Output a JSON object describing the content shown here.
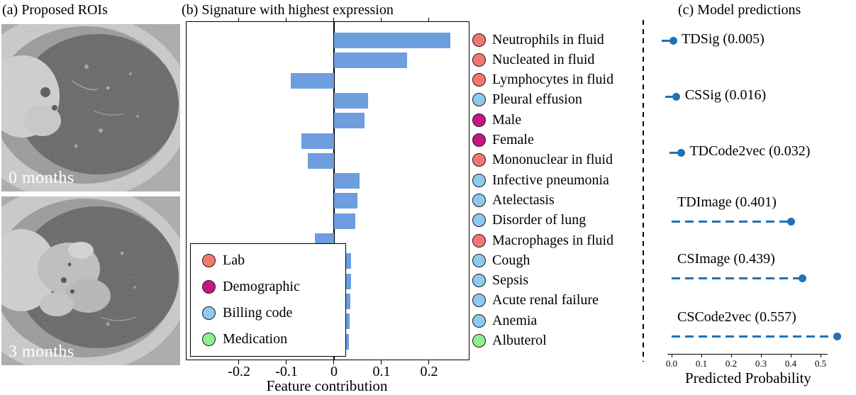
{
  "panel_a": {
    "title": "(a) Proposed ROIs",
    "images": [
      {
        "name": "ct-scan-baseline",
        "label": "0 months"
      },
      {
        "name": "ct-scan-followup",
        "label": "3 months"
      }
    ]
  },
  "panel_b": {
    "title": "(b) Signature with highest expression"
  },
  "panel_c": {
    "title": "(c) Model predictions"
  },
  "chart_data": [
    {
      "id": "signature-feature-contributions",
      "type": "bar",
      "orientation": "horizontal",
      "title": "(b) Signature with highest expression",
      "xlabel": "Feature contribution",
      "xlim": [
        -0.31,
        0.28
      ],
      "grid": false,
      "bar_color": "#6D9EDD",
      "category_colors": {
        "Lab": "#F4776F",
        "Demographic": "#C71585",
        "Billing code": "#8FC9EE",
        "Medication": "#90EE90"
      },
      "xticks": [
        {
          "label": "-0.2",
          "value": -0.2
        },
        {
          "label": "-0.1",
          "value": -0.1
        },
        {
          "label": "0",
          "value": 0
        },
        {
          "label": "0.1",
          "value": 0.1
        },
        {
          "label": "0.2",
          "value": 0.2
        }
      ],
      "features": [
        {
          "label": "Neutrophils in fluid",
          "category": "Lab",
          "value": 0.245
        },
        {
          "label": "Nucleated in fluid",
          "category": "Lab",
          "value": 0.155
        },
        {
          "label": "Lymphocytes in fluid",
          "category": "Lab",
          "value": -0.09
        },
        {
          "label": "Pleural effusion",
          "category": "Billing code",
          "value": 0.072
        },
        {
          "label": "Male",
          "category": "Demographic",
          "value": 0.065
        },
        {
          "label": "Female",
          "category": "Demographic",
          "value": -0.068
        },
        {
          "label": "Mononuclear in fluid",
          "category": "Lab",
          "value": -0.055
        },
        {
          "label": "Infective pneumonia",
          "category": "Billing code",
          "value": 0.055
        },
        {
          "label": "Atelectasis",
          "category": "Billing code",
          "value": 0.05
        },
        {
          "label": "Disorder of lung",
          "category": "Billing code",
          "value": 0.046
        },
        {
          "label": "Macrophages in fluid",
          "category": "Lab",
          "value": -0.04
        },
        {
          "label": "Cough",
          "category": "Billing code",
          "value": 0.037
        },
        {
          "label": "Sepsis",
          "category": "Billing code",
          "value": 0.036
        },
        {
          "label": "Acute renal failure",
          "category": "Billing code",
          "value": 0.035
        },
        {
          "label": "Anemia",
          "category": "Billing code",
          "value": 0.033
        },
        {
          "label": "Albuterol",
          "category": "Medication",
          "value": 0.032
        }
      ],
      "legend": [
        {
          "label": "Lab",
          "category": "Lab"
        },
        {
          "label": "Demographic",
          "category": "Demographic"
        },
        {
          "label": "Billing code",
          "category": "Billing code"
        },
        {
          "label": "Medication",
          "category": "Medication"
        }
      ],
      "legend_position": "lower left"
    },
    {
      "id": "model-predicted-probabilities",
      "type": "scatter",
      "title": "(c) Model predictions",
      "xlabel": "Predicted Probability",
      "xlim": [
        0,
        0.6
      ],
      "color": "#2272B4",
      "xticks": [
        {
          "label": "0.0",
          "value": 0.0
        },
        {
          "label": "0.1",
          "value": 0.1
        },
        {
          "label": "0.2",
          "value": 0.2
        },
        {
          "label": "0.3",
          "value": 0.3
        },
        {
          "label": "0.4",
          "value": 0.4
        },
        {
          "label": "0.5",
          "value": 0.5
        }
      ],
      "models": [
        {
          "name": "TDSig",
          "probability": 0.005,
          "label": "TDSig (0.005)"
        },
        {
          "name": "CSSig",
          "probability": 0.016,
          "label": "CSSig (0.016)"
        },
        {
          "name": "TDCode2vec",
          "probability": 0.032,
          "label": "TDCode2vec (0.032)"
        },
        {
          "name": "TDImage",
          "probability": 0.401,
          "label": "TDImage (0.401)"
        },
        {
          "name": "CSImage",
          "probability": 0.439,
          "label": "CSImage (0.439)"
        },
        {
          "name": "CSCode2vec",
          "probability": 0.557,
          "label": "CSCode2vec (0.557)"
        }
      ]
    }
  ]
}
